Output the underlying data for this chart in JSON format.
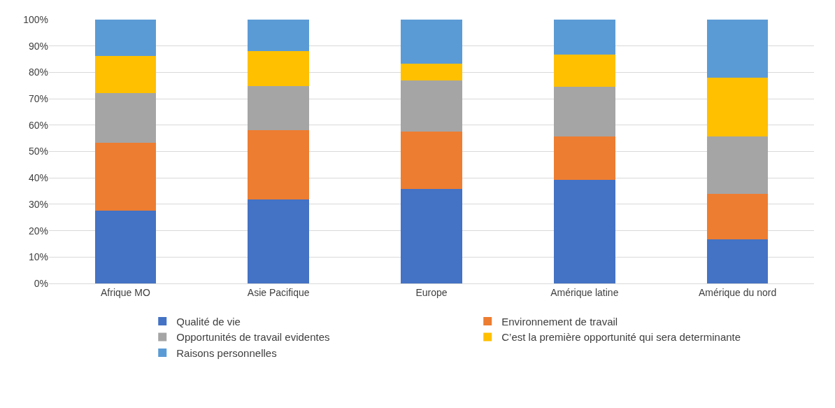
{
  "chart_data": {
    "type": "bar",
    "stacked": true,
    "categories": [
      "Afrique MO",
      "Asie Pacifique",
      "Europe",
      "Amérique latine",
      "Amérique du nord"
    ],
    "series": [
      {
        "name": "Qualité de vie",
        "color": "#4472c4",
        "values": [
          27.6,
          31.7,
          35.8,
          39.3,
          16.8
        ]
      },
      {
        "name": "Environnement de travail",
        "color": "#ed7d31",
        "values": [
          25.8,
          26.3,
          21.7,
          16.3,
          17.1
        ]
      },
      {
        "name": "Opportunités de travail evidentes",
        "color": "#a5a5a5",
        "values": [
          18.7,
          16.8,
          19.5,
          18.9,
          21.9
        ]
      },
      {
        "name": "C’est la première opportunité qui sera determinante",
        "color": "#ffc000",
        "values": [
          14.1,
          13.3,
          6.2,
          12.2,
          22.2
        ]
      },
      {
        "name": "Raisons personnelles",
        "color": "#5b9bd5",
        "values": [
          13.8,
          11.9,
          16.8,
          13.3,
          22.0
        ]
      }
    ],
    "ylim": [
      0,
      100
    ],
    "yticks": [
      {
        "value": 0,
        "label": "0%"
      },
      {
        "value": 10,
        "label": "10%"
      },
      {
        "value": 20,
        "label": "20%"
      },
      {
        "value": 30,
        "label": "30%"
      },
      {
        "value": 40,
        "label": "40%"
      },
      {
        "value": 50,
        "label": "50%"
      },
      {
        "value": 60,
        "label": "60%"
      },
      {
        "value": 70,
        "label": "70%"
      },
      {
        "value": 80,
        "label": "80%"
      },
      {
        "value": 90,
        "label": "90%"
      },
      {
        "value": 100,
        "label": "100%"
      }
    ],
    "grid": "y",
    "legend": "bottom"
  }
}
